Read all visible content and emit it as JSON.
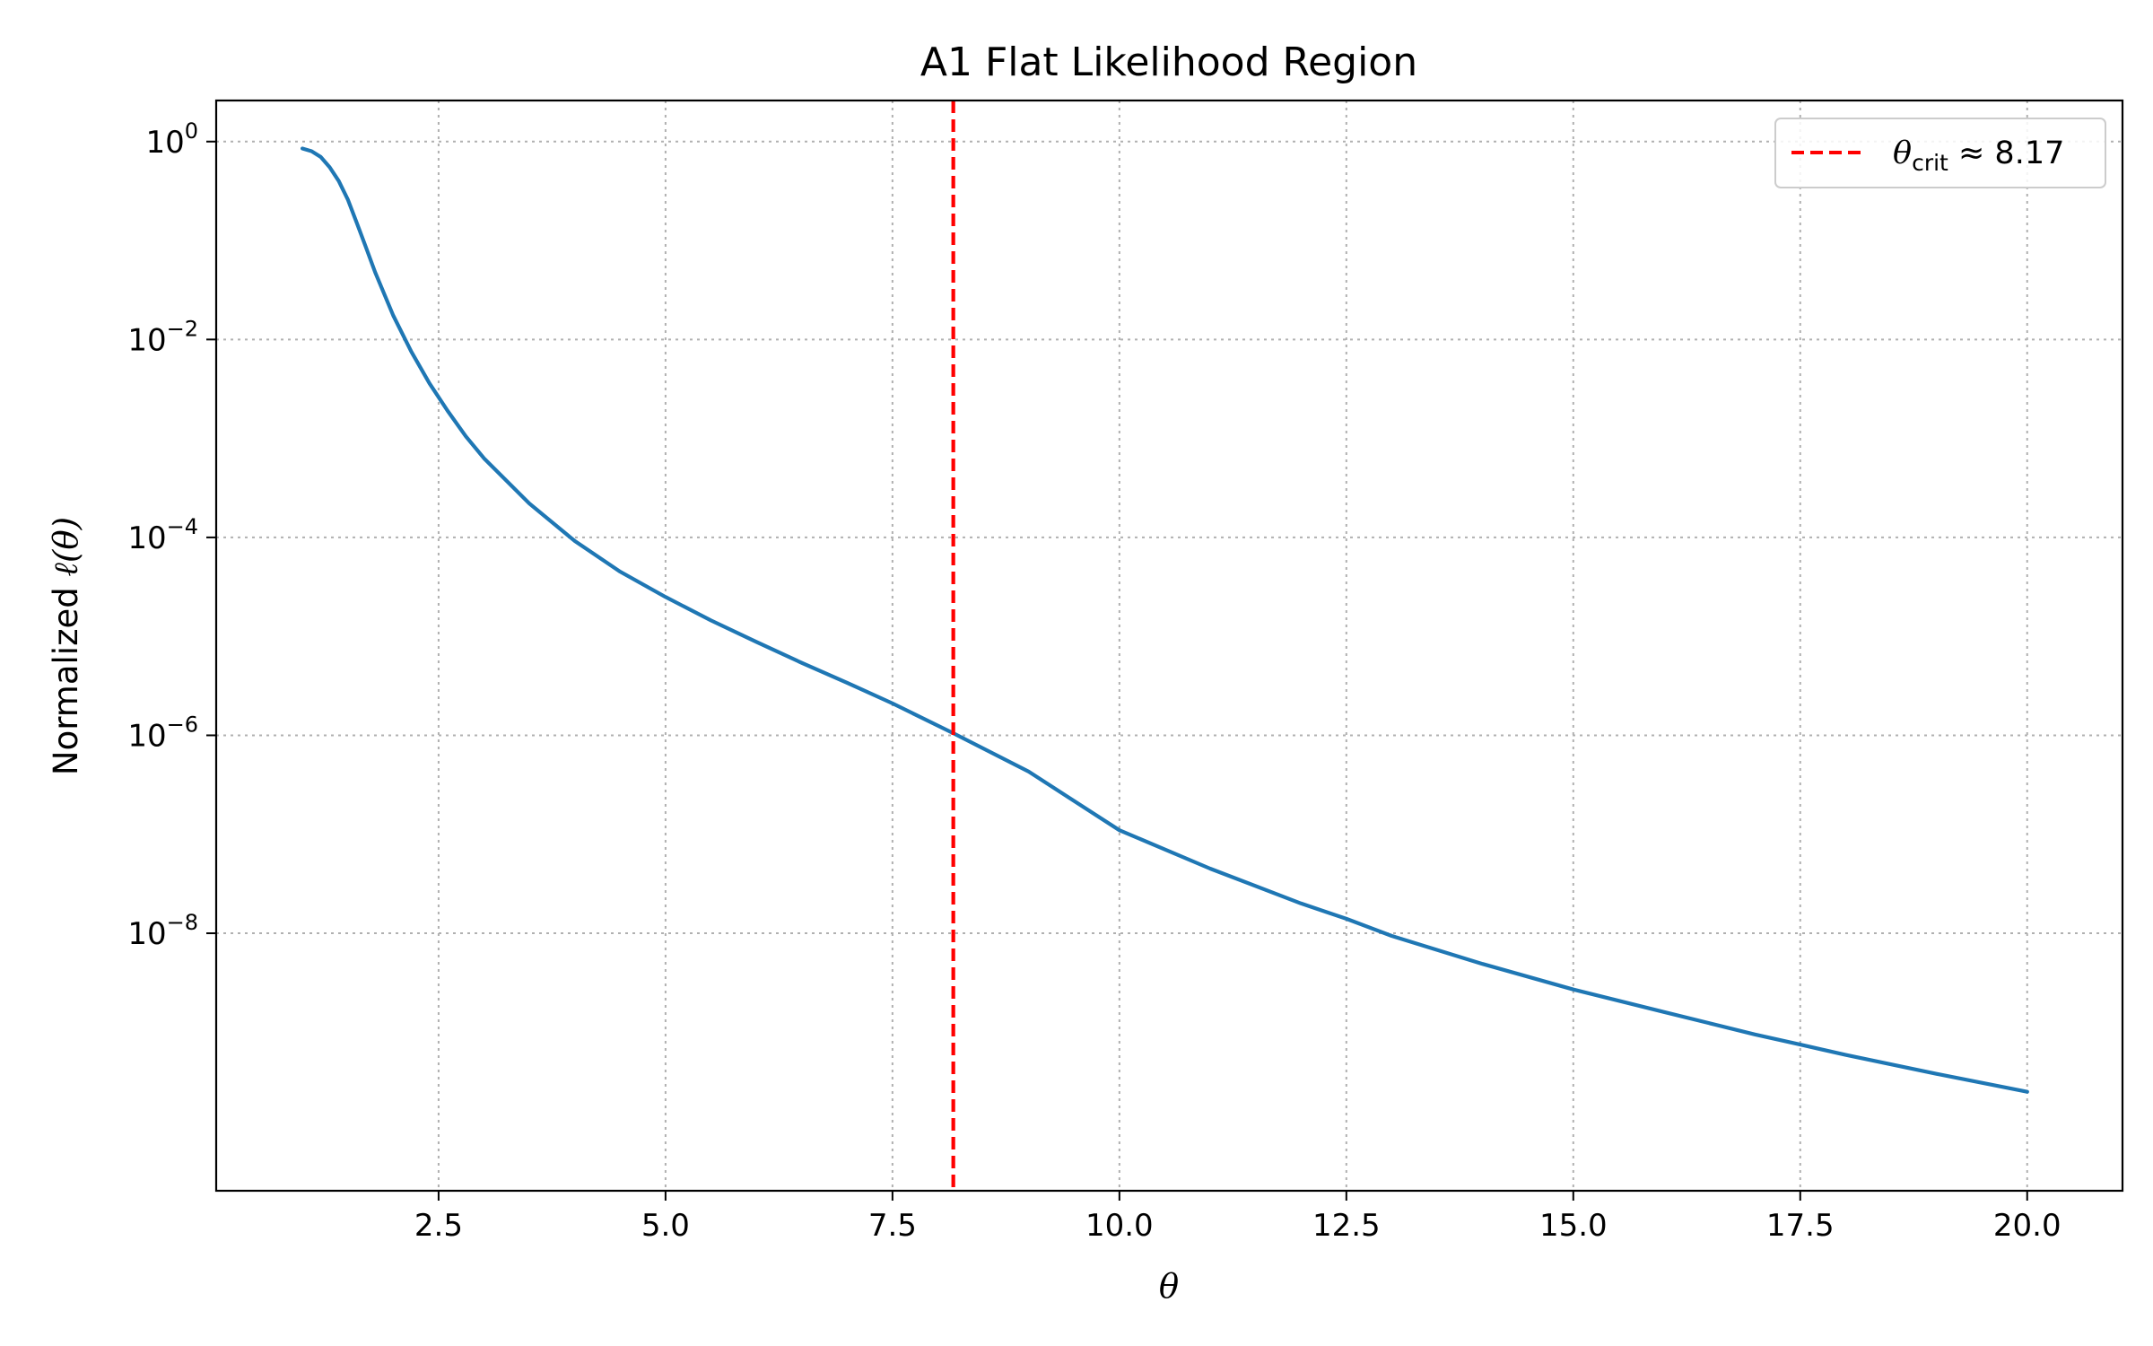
{
  "chart_data": {
    "type": "line",
    "title": "A1 Flat Likelihood Region",
    "xlabel": "θ",
    "ylabel_prefix": "Normalized ",
    "ylabel_symbol": "ℓ(θ)",
    "xlim": [
      0.05,
      21.05
    ],
    "xticks": [
      2.5,
      5.0,
      7.5,
      10.0,
      12.5,
      15.0,
      17.5,
      20.0
    ],
    "xtick_labels": [
      "2.5",
      "5.0",
      "7.5",
      "10.0",
      "12.5",
      "15.0",
      "17.5",
      "20.0"
    ],
    "yscale": "log",
    "ylim": [
      2.5e-11,
      2.6
    ],
    "yticks": [
      {
        "value": 1,
        "base": "10",
        "exp": "0"
      },
      {
        "value": 0.01,
        "base": "10",
        "exp": "−2"
      },
      {
        "value": 0.0001,
        "base": "10",
        "exp": "−4"
      },
      {
        "value": 1e-06,
        "base": "10",
        "exp": "−6"
      },
      {
        "value": 1e-08,
        "base": "10",
        "exp": "−8"
      }
    ],
    "grid": true,
    "legend_position": "upper right",
    "series": [
      {
        "color": "#1f77b4",
        "x": [
          1.0,
          1.1,
          1.2,
          1.3,
          1.4,
          1.5,
          1.6,
          1.7,
          1.8,
          2.0,
          2.2,
          2.4,
          2.6,
          2.8,
          3.0,
          3.5,
          4.0,
          4.5,
          5.0,
          5.5,
          6.0,
          6.5,
          7.0,
          7.5,
          8.17,
          9.0,
          10.0,
          11.0,
          12.0,
          12.5,
          13.0,
          14.0,
          15.0,
          16.0,
          17.0,
          17.5,
          18.0,
          19.0,
          20.0
        ],
        "y": [
          0.85,
          0.8,
          0.7,
          0.55,
          0.4,
          0.26,
          0.15,
          0.085,
          0.048,
          0.0175,
          0.0075,
          0.0036,
          0.0019,
          0.00105,
          0.00063,
          0.00022,
          9.2e-05,
          4.5e-05,
          2.5e-05,
          1.45e-05,
          8.8e-06,
          5.4e-06,
          3.4e-06,
          2.1e-06,
          1.05e-06,
          4.3e-07,
          1.1e-07,
          4.5e-08,
          2e-08,
          1.4e-08,
          9.4e-09,
          4.9e-09,
          2.7e-09,
          1.6e-09,
          9.5e-10,
          7.5e-10,
          5.9e-10,
          3.8e-10,
          2.5e-10
        ]
      }
    ],
    "vline": {
      "x": 8.17,
      "color": "#ff0000",
      "style": "dashed",
      "legend_symbol": "θ",
      "legend_sub": "crit",
      "legend_rest": " ≈ 8.17"
    }
  }
}
